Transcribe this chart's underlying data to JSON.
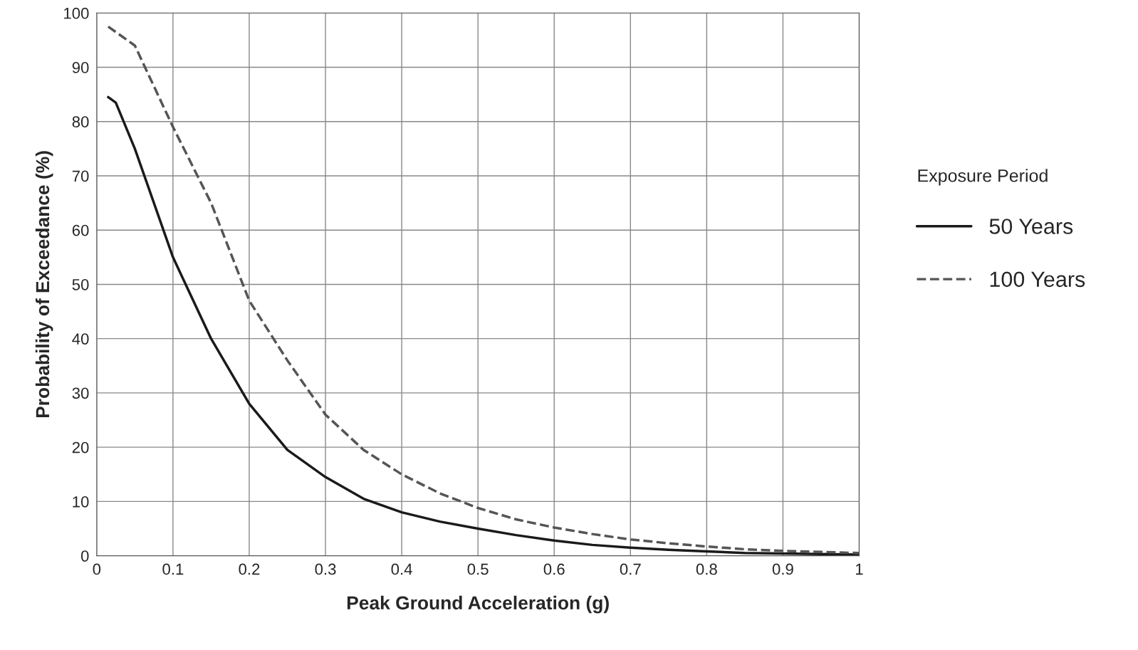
{
  "chart_data": {
    "type": "line",
    "xlabel": "Peak Ground Acceleration (g)",
    "ylabel": "Probability of Exceedance (%)",
    "legend_title": "Exposure Period",
    "x": [
      0.015,
      0.025,
      0.05,
      0.1,
      0.15,
      0.2,
      0.25,
      0.3,
      0.35,
      0.4,
      0.45,
      0.5,
      0.55,
      0.6,
      0.65,
      0.7,
      0.75,
      0.8,
      0.85,
      0.9,
      1.0
    ],
    "series": [
      {
        "name": "50 Years",
        "color": "#1a1a1a",
        "line_style": "solid",
        "values": [
          84.5,
          83.5,
          75,
          55,
          40,
          28,
          19.5,
          14.5,
          10.5,
          8,
          6.3,
          5,
          3.8,
          2.8,
          2,
          1.5,
          1.1,
          0.8,
          0.5,
          0.4,
          0.2
        ]
      },
      {
        "name": "100 Years",
        "color": "#555555",
        "line_style": "dashed",
        "values": [
          97.5,
          96.5,
          94,
          79,
          65,
          47,
          36,
          26,
          19.5,
          15,
          11.5,
          8.8,
          6.7,
          5.2,
          4,
          3,
          2.3,
          1.7,
          1.2,
          0.9,
          0.5
        ]
      }
    ],
    "xlim": [
      0,
      1
    ],
    "xticks": [
      0,
      0.1,
      0.2,
      0.3,
      0.4,
      0.5,
      0.6,
      0.7,
      0.8,
      0.9,
      1
    ],
    "ylim": [
      0,
      100
    ],
    "yticks": [
      0,
      10,
      20,
      30,
      40,
      50,
      60,
      70,
      80,
      90,
      100
    ],
    "grid": true,
    "legend": "right"
  }
}
